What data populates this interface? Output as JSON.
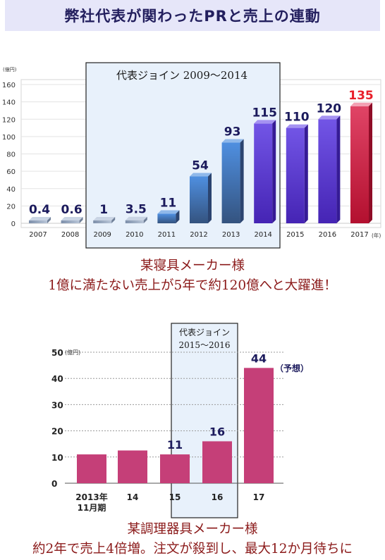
{
  "header": {
    "title": "弊社代表が関わったPRと売上の連動"
  },
  "chart1": {
    "unit_label": "(億円)",
    "highlight_label": "代表ジョイン 2009〜2014",
    "year_suffix": "(年)",
    "colors": {
      "early": "#98a9c2",
      "blue": "#3a66a6",
      "violet": "#5330c8",
      "red": "#c2143a",
      "value_dark": "#1b1a5c",
      "value_red": "#e8202a"
    }
  },
  "chart2": {
    "unit_label": "(億円)",
    "highlight_label_line1": "代表ジョイン",
    "highlight_label_line2": "2015〜2016",
    "forecast_label": "（予想）",
    "colors": {
      "bar": "#c53f78",
      "value": "#1b1a5c"
    }
  },
  "caption1": {
    "line1": "某寝具メーカー様",
    "line2": "1億に満たない売上が5年で約120億へと大躍進！"
  },
  "caption2": {
    "line1": "某調理器具メーカー様",
    "line2": "約2年で売上4倍増。注文が殺到し、最大12か月待ちに"
  },
  "chart_data": [
    {
      "type": "bar",
      "ylabel": "(億円)",
      "xlabel": "(年)",
      "ylim": [
        0,
        160
      ],
      "yticks": [
        0,
        20,
        40,
        60,
        80,
        100,
        120,
        140,
        160
      ],
      "categories": [
        "2007",
        "2008",
        "2009",
        "2010",
        "2011",
        "2012",
        "2013",
        "2014",
        "2015",
        "2016",
        "2017"
      ],
      "values": [
        0.4,
        0.6,
        1,
        3.5,
        11,
        54,
        93,
        115,
        110,
        120,
        135
      ],
      "value_labels": [
        "0.4",
        "0.6",
        "1",
        "3.5",
        "11",
        "54",
        "93",
        "115",
        "110",
        "120",
        "135"
      ],
      "annotations": [
        "代表ジョイン 2009〜2014"
      ],
      "grid": true
    },
    {
      "type": "bar",
      "ylabel": "(億円)",
      "ylim": [
        0,
        50
      ],
      "yticks": [
        0,
        10,
        20,
        30,
        40,
        50
      ],
      "categories": [
        "2013年\n11月期",
        "14",
        "15",
        "16",
        "17"
      ],
      "values": [
        11,
        12.5,
        11,
        16,
        44
      ],
      "value_labels": [
        "",
        "",
        "11",
        "16",
        "44"
      ],
      "annotations": [
        "代表ジョイン 2015〜2016",
        "（予想）"
      ],
      "grid": true
    }
  ]
}
